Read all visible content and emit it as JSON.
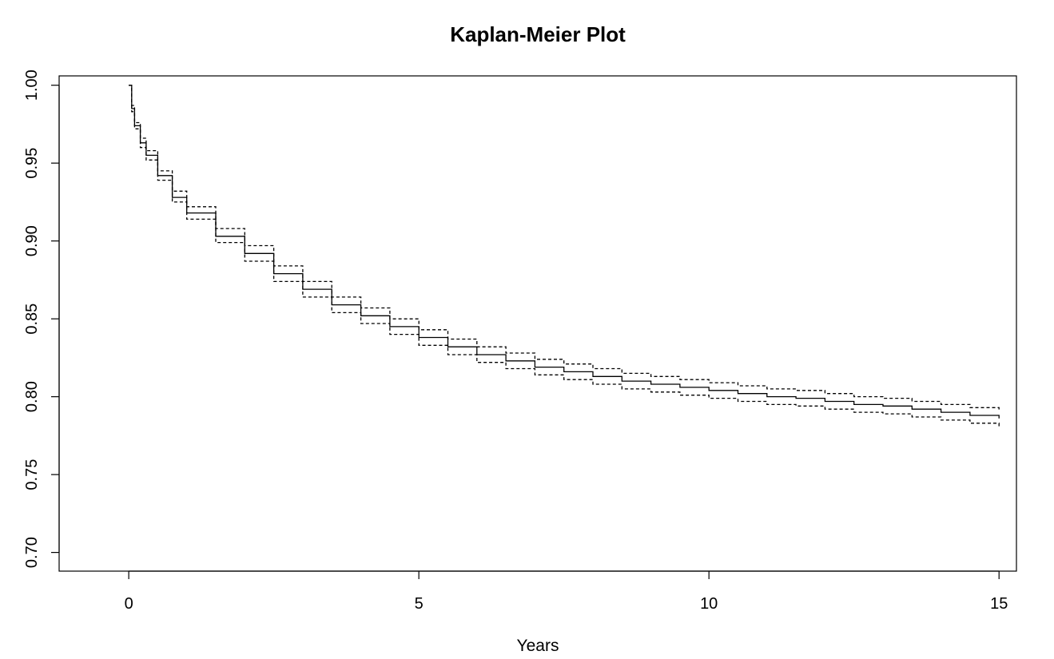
{
  "chart_data": {
    "type": "line",
    "title": "Kaplan-Meier Plot",
    "xlabel": "Years",
    "ylabel": "",
    "xlim": [
      -1.2,
      15.3
    ],
    "ylim": [
      0.688,
      1.006
    ],
    "xticks": [
      0,
      5,
      10,
      15
    ],
    "xtick_labels": [
      "0",
      "5",
      "10",
      "15"
    ],
    "yticks": [
      0.7,
      0.75,
      0.8,
      0.85,
      0.9,
      0.95,
      1.0
    ],
    "ytick_labels": [
      "0.70",
      "0.75",
      "0.80",
      "0.85",
      "0.90",
      "0.95",
      "1.00"
    ],
    "grid": false,
    "legend": "none",
    "x": [
      0,
      0.05,
      0.1,
      0.2,
      0.3,
      0.5,
      0.75,
      1.0,
      1.5,
      2.0,
      2.5,
      3.0,
      3.5,
      4.0,
      4.5,
      5.0,
      5.5,
      6.0,
      6.5,
      7.0,
      7.5,
      8.0,
      8.5,
      9.0,
      9.5,
      10.0,
      10.5,
      11.0,
      11.5,
      12.0,
      12.5,
      13.0,
      13.5,
      14.0,
      14.5,
      15.0
    ],
    "series": [
      {
        "style": "solid",
        "values": [
          1.0,
          0.985,
          0.974,
          0.963,
          0.955,
          0.942,
          0.928,
          0.918,
          0.903,
          0.892,
          0.879,
          0.869,
          0.859,
          0.852,
          0.845,
          0.838,
          0.832,
          0.827,
          0.823,
          0.819,
          0.816,
          0.813,
          0.81,
          0.808,
          0.806,
          0.804,
          0.802,
          0.8,
          0.799,
          0.797,
          0.795,
          0.794,
          0.792,
          0.79,
          0.788,
          0.786
        ]
      },
      {
        "style": "dashed",
        "values": [
          1.0,
          0.987,
          0.976,
          0.966,
          0.958,
          0.945,
          0.932,
          0.922,
          0.908,
          0.897,
          0.884,
          0.874,
          0.864,
          0.857,
          0.85,
          0.843,
          0.837,
          0.832,
          0.828,
          0.824,
          0.821,
          0.818,
          0.815,
          0.813,
          0.811,
          0.809,
          0.807,
          0.805,
          0.804,
          0.802,
          0.8,
          0.799,
          0.797,
          0.795,
          0.793,
          0.791
        ]
      },
      {
        "style": "dashed",
        "values": [
          1.0,
          0.983,
          0.972,
          0.96,
          0.952,
          0.939,
          0.925,
          0.914,
          0.899,
          0.887,
          0.874,
          0.864,
          0.854,
          0.847,
          0.84,
          0.833,
          0.827,
          0.822,
          0.818,
          0.814,
          0.811,
          0.808,
          0.805,
          0.803,
          0.801,
          0.799,
          0.797,
          0.795,
          0.794,
          0.792,
          0.79,
          0.789,
          0.787,
          0.785,
          0.783,
          0.781
        ]
      }
    ]
  }
}
